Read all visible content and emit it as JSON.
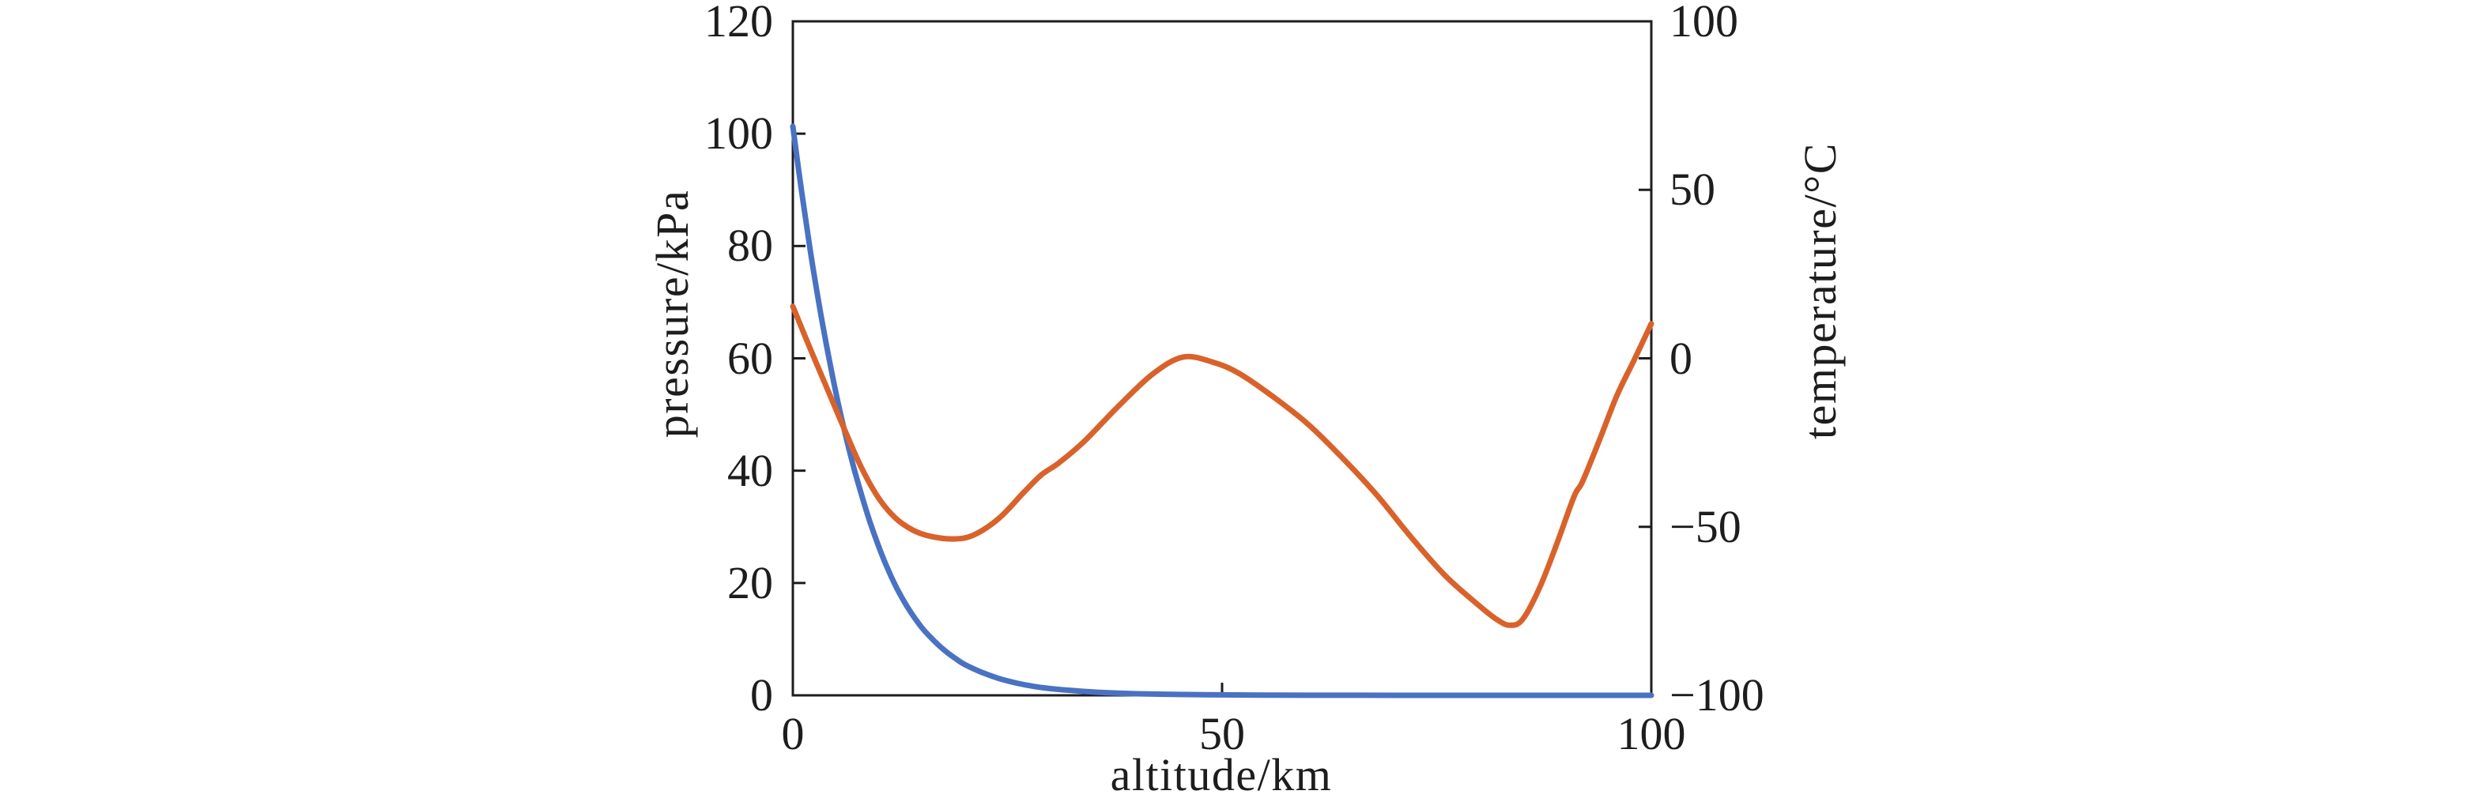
{
  "chart_data": {
    "type": "line",
    "title": "",
    "xlabel": "altitude/km",
    "ylabel_left": "pressure/kPa",
    "ylabel_right": "temperature/°C",
    "xlim": [
      0,
      100
    ],
    "ylim_left": [
      0,
      120
    ],
    "ylim_right": [
      -100,
      100
    ],
    "grid": false,
    "legend": null,
    "frame_color": "#1d1d1d",
    "xticks": {
      "values": [
        0,
        50,
        100
      ],
      "labels": [
        "0",
        "50",
        "100"
      ]
    },
    "yticks_left": {
      "values": [
        0,
        20,
        40,
        60,
        80,
        100,
        120
      ],
      "labels": [
        "0",
        "20",
        "40",
        "60",
        "80",
        "100",
        "120"
      ]
    },
    "yticks_right": {
      "values": [
        -100,
        -50,
        0,
        50,
        100
      ],
      "labels": [
        "−100",
        "−50",
        "0",
        "50",
        "100"
      ]
    },
    "series": [
      {
        "name": "pressure",
        "yaxis": "left",
        "units": "kPa",
        "color": "#4A72C2",
        "points": [
          [
            0,
            101.3
          ],
          [
            1,
            89.9
          ],
          [
            2,
            79.5
          ],
          [
            3,
            70.1
          ],
          [
            4,
            61.7
          ],
          [
            5,
            54.0
          ],
          [
            6,
            47.2
          ],
          [
            7,
            41.1
          ],
          [
            8,
            35.7
          ],
          [
            9,
            30.8
          ],
          [
            10,
            26.5
          ],
          [
            11,
            22.7
          ],
          [
            12,
            19.4
          ],
          [
            13,
            16.6
          ],
          [
            14,
            14.2
          ],
          [
            15,
            12.1
          ],
          [
            16,
            10.4
          ],
          [
            17,
            8.9
          ],
          [
            18,
            7.6
          ],
          [
            19,
            6.5
          ],
          [
            20,
            5.5
          ],
          [
            22,
            4.1
          ],
          [
            24,
            3.0
          ],
          [
            26,
            2.2
          ],
          [
            28,
            1.6
          ],
          [
            30,
            1.2
          ],
          [
            33,
            0.8
          ],
          [
            36,
            0.5
          ],
          [
            40,
            0.28
          ],
          [
            45,
            0.15
          ],
          [
            50,
            0.08
          ],
          [
            55,
            0.04
          ],
          [
            60,
            0.02
          ],
          [
            70,
            0.006
          ],
          [
            80,
            0.001
          ],
          [
            90,
            0.0003
          ],
          [
            100,
            0.0001
          ]
        ]
      },
      {
        "name": "temperature",
        "yaxis": "right",
        "units": "°C",
        "color": "#D9622B",
        "points": [
          [
            0,
            15.4
          ],
          [
            2,
            3.0
          ],
          [
            4,
            -9.0
          ],
          [
            6,
            -21.0
          ],
          [
            8,
            -32.5
          ],
          [
            10,
            -41.5
          ],
          [
            12,
            -47.5
          ],
          [
            14,
            -51.0
          ],
          [
            16,
            -52.8
          ],
          [
            18.6,
            -53.6
          ],
          [
            21,
            -52.5
          ],
          [
            24,
            -47.5
          ],
          [
            27,
            -39.5
          ],
          [
            29,
            -34.5
          ],
          [
            31,
            -31.0
          ],
          [
            34,
            -24.5
          ],
          [
            38,
            -14.0
          ],
          [
            42,
            -4.5
          ],
          [
            45.5,
            0.4
          ],
          [
            49,
            -1.2
          ],
          [
            52,
            -4.5
          ],
          [
            56,
            -11.5
          ],
          [
            60,
            -19.5
          ],
          [
            64,
            -29.5
          ],
          [
            68,
            -40.5
          ],
          [
            72,
            -53.0
          ],
          [
            76,
            -64.5
          ],
          [
            80,
            -73.5
          ],
          [
            82,
            -77.5
          ],
          [
            83.5,
            -79.2
          ],
          [
            85,
            -77.5
          ],
          [
            87,
            -68.0
          ],
          [
            89,
            -55.0
          ],
          [
            91,
            -41.0
          ],
          [
            92,
            -36.5
          ],
          [
            94,
            -24.0
          ],
          [
            96,
            -11.0
          ],
          [
            98,
            -0.5
          ],
          [
            100,
            10.3
          ]
        ]
      }
    ]
  }
}
